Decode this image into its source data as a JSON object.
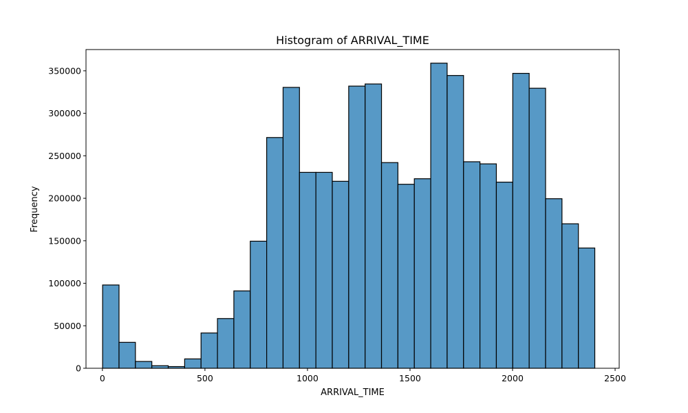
{
  "chart_data": {
    "type": "bar",
    "title": "Histogram of ARRIVAL_TIME",
    "xlabel": "ARRIVAL_TIME",
    "ylabel": "Frequency",
    "bin_width": 80,
    "x_start": 1,
    "xlim": [
      -80,
      2520
    ],
    "ylim": [
      0,
      375000
    ],
    "xticks": [
      0,
      500,
      1000,
      1500,
      2000,
      2500
    ],
    "yticks": [
      0,
      50000,
      100000,
      150000,
      200000,
      250000,
      300000,
      350000
    ],
    "bar_color": "#5799c6",
    "grid": false,
    "values": [
      98000,
      30500,
      8000,
      3000,
      2000,
      11000,
      41500,
      58500,
      91000,
      149500,
      271500,
      330500,
      230500,
      230500,
      220000,
      332000,
      334500,
      242000,
      216500,
      223000,
      359000,
      344500,
      243000,
      240500,
      219000,
      347000,
      329500,
      199500,
      170000,
      141500
    ]
  }
}
